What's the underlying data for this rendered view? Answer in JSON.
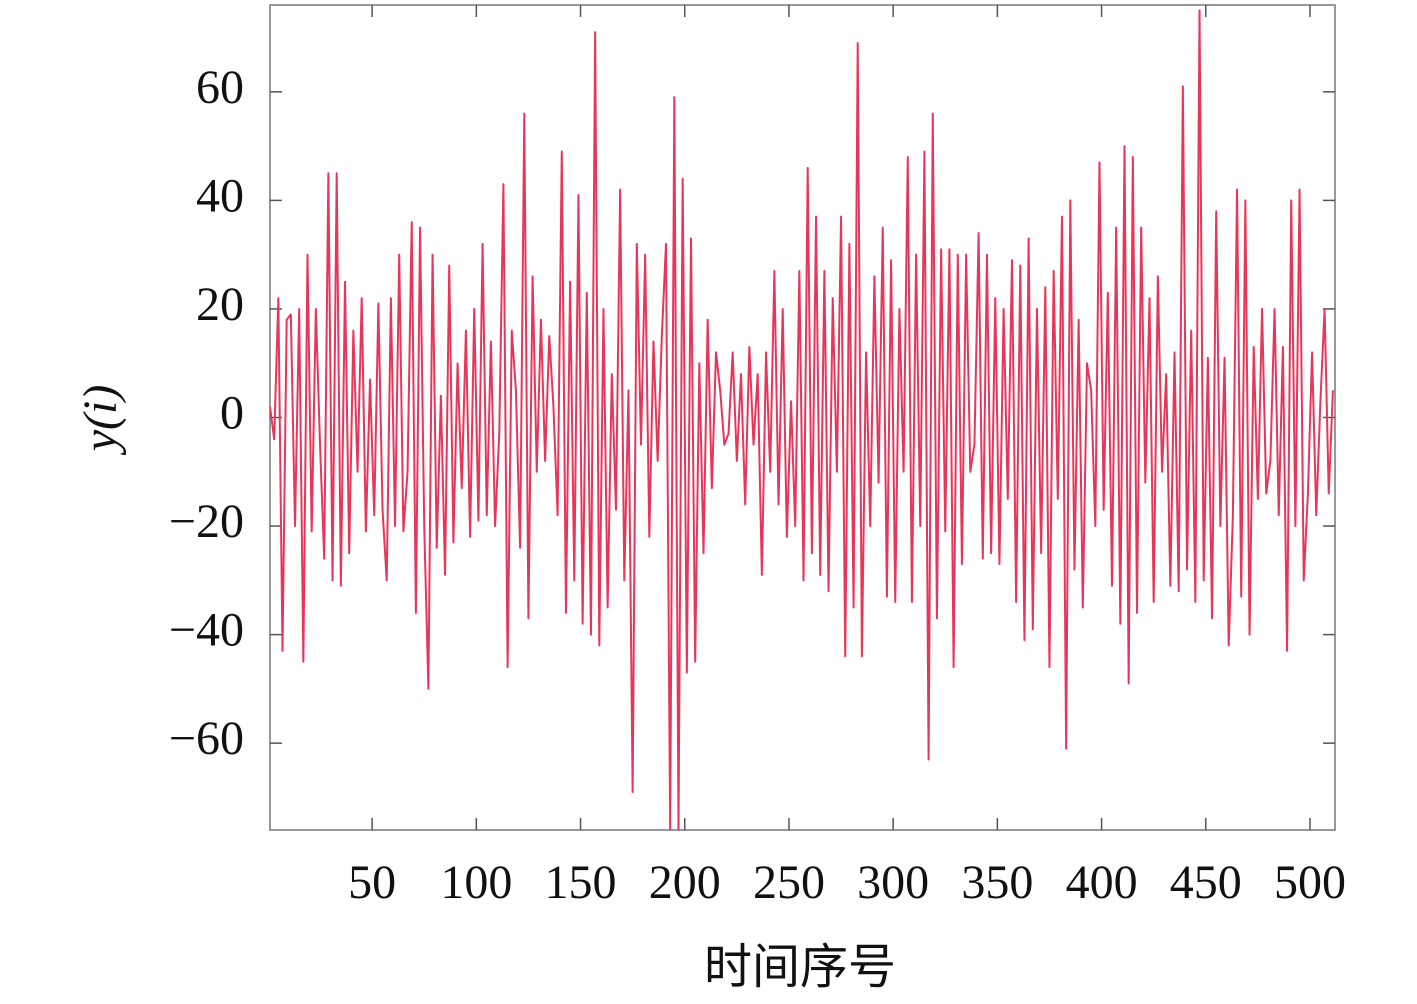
{
  "chart_data": {
    "type": "line",
    "y_label": "y(i)",
    "x_label": "时间序号",
    "color": "#e8365a",
    "xlim": [
      1,
      512
    ],
    "ylim": [
      -76,
      76
    ],
    "xticks": [
      50,
      100,
      150,
      200,
      250,
      300,
      350,
      400,
      450,
      500
    ],
    "yticks": [
      {
        "value": -60,
        "label": "−60"
      },
      {
        "value": -40,
        "label": "−40"
      },
      {
        "value": -20,
        "label": "−20"
      },
      0,
      20,
      40,
      60
    ],
    "grid": false,
    "x": [
      1,
      3,
      5,
      7,
      9,
      11,
      13,
      15,
      17,
      19,
      21,
      23,
      25,
      27,
      29,
      31,
      33,
      35,
      37,
      39,
      41,
      43,
      45,
      47,
      49,
      51,
      53,
      55,
      57,
      59,
      61,
      63,
      65,
      67,
      69,
      71,
      73,
      75,
      77,
      79,
      81,
      83,
      85,
      87,
      89,
      91,
      93,
      95,
      97,
      99,
      101,
      103,
      105,
      107,
      109,
      111,
      113,
      115,
      117,
      119,
      121,
      123,
      125,
      127,
      129,
      131,
      133,
      135,
      137,
      139,
      141,
      143,
      145,
      147,
      149,
      151,
      153,
      155,
      157,
      159,
      161,
      163,
      165,
      167,
      169,
      171,
      173,
      175,
      177,
      179,
      181,
      183,
      185,
      187,
      189,
      191,
      193,
      195,
      197,
      199,
      201,
      203,
      205,
      207,
      209,
      211,
      213,
      215,
      217,
      219,
      221,
      223,
      225,
      227,
      229,
      231,
      233,
      235,
      237,
      239,
      241,
      243,
      245,
      247,
      249,
      251,
      253,
      255,
      257,
      259,
      261,
      263,
      265,
      267,
      269,
      271,
      273,
      275,
      277,
      279,
      281,
      283,
      285,
      287,
      289,
      291,
      293,
      295,
      297,
      299,
      301,
      303,
      305,
      307,
      309,
      311,
      313,
      315,
      317,
      319,
      321,
      323,
      325,
      327,
      329,
      331,
      333,
      335,
      337,
      339,
      341,
      343,
      345,
      347,
      349,
      351,
      353,
      355,
      357,
      359,
      361,
      363,
      365,
      367,
      369,
      371,
      373,
      375,
      377,
      379,
      381,
      383,
      385,
      387,
      389,
      391,
      393,
      395,
      397,
      399,
      401,
      403,
      405,
      407,
      409,
      411,
      413,
      415,
      417,
      419,
      421,
      423,
      425,
      427,
      429,
      431,
      433,
      435,
      437,
      439,
      441,
      443,
      445,
      447,
      449,
      451,
      453,
      455,
      457,
      459,
      461,
      463,
      465,
      467,
      469,
      471,
      473,
      475,
      477,
      479,
      481,
      483,
      485,
      487,
      489,
      491,
      493,
      495,
      497,
      499,
      501,
      503,
      505,
      507,
      509,
      511
    ],
    "values": [
      2,
      -4,
      22,
      -43,
      18,
      19,
      -20,
      20,
      -45,
      30,
      -21,
      20,
      -5,
      -26,
      45,
      -30,
      45,
      -31,
      25,
      -25,
      16,
      -10,
      22,
      -21,
      7,
      -18,
      21,
      -17,
      -30,
      22,
      -20,
      30,
      -21,
      -10,
      36,
      -36,
      35,
      -20,
      -50,
      30,
      -24,
      4,
      -29,
      28,
      -23,
      10,
      -13,
      16,
      -22,
      20,
      -19,
      32,
      -18,
      14,
      -20,
      -3,
      43,
      -46,
      16,
      5,
      -24,
      56,
      -37,
      26,
      -10,
      18,
      -8,
      15,
      2,
      -18,
      49,
      -36,
      25,
      -30,
      41,
      -38,
      23,
      -40,
      71,
      -42,
      20,
      -35,
      8,
      -17,
      42,
      -30,
      5,
      -69,
      32,
      -5,
      30,
      -22,
      14,
      -8,
      15,
      32,
      -76,
      59,
      -76,
      44,
      -47,
      33,
      -45,
      10,
      -25,
      18,
      -13,
      12,
      5,
      -5,
      -3,
      12,
      -8,
      8,
      -16,
      13,
      -5,
      8,
      -29,
      12,
      -10,
      27,
      -16,
      20,
      -22,
      3,
      -20,
      27,
      -30,
      46,
      -25,
      37,
      -29,
      27,
      -32,
      22,
      -10,
      37,
      -44,
      32,
      -35,
      69,
      -44,
      12,
      -20,
      26,
      -12,
      35,
      -33,
      29,
      -34,
      20,
      -10,
      48,
      -34,
      30,
      -20,
      49,
      -63,
      56,
      -37,
      31,
      -21,
      31,
      -46,
      30,
      -27,
      30,
      -10,
      -5,
      34,
      -26,
      30,
      -25,
      22,
      -27,
      20,
      -15,
      29,
      -34,
      28,
      -41,
      33,
      -39,
      20,
      -25,
      24,
      -46,
      27,
      -15,
      37,
      -61,
      40,
      -28,
      18,
      -35,
      10,
      5,
      -20,
      47,
      -17,
      23,
      -31,
      35,
      -38,
      50,
      -49,
      48,
      -36,
      35,
      -12,
      22,
      -34,
      26,
      -10,
      8,
      -31,
      12,
      -32,
      61,
      -28,
      16,
      -34,
      75,
      -30,
      11,
      -37,
      38,
      -20,
      11,
      -42,
      -18,
      42,
      -33,
      40,
      -40,
      13,
      -15,
      20,
      -14,
      -8,
      20,
      -18,
      13,
      -43,
      40,
      -20,
      42,
      -30,
      -14,
      12,
      -18,
      3,
      20,
      -14,
      5
    ]
  }
}
